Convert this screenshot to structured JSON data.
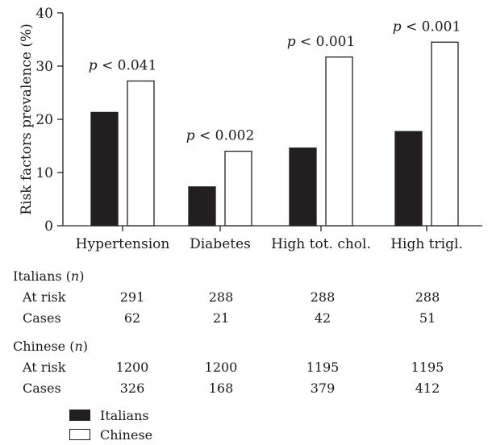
{
  "chart_data": {
    "type": "bar",
    "ylabel": "Risk factors prevalence (%)",
    "ylim": [
      0,
      40
    ],
    "yticks": [
      0,
      10,
      20,
      30,
      40
    ],
    "categories": [
      "Hypertension",
      "Diabetes",
      "High tot. chol.",
      "High trigl."
    ],
    "series": [
      {
        "name": "Italians",
        "color": "#231f20",
        "values": [
          21.3,
          7.3,
          14.6,
          17.7
        ]
      },
      {
        "name": "Chinese",
        "color": "#ffffff",
        "values": [
          27.2,
          14.0,
          31.7,
          34.5
        ]
      }
    ],
    "annotations": [
      {
        "p": "p",
        "text": " < 0.041"
      },
      {
        "p": "p",
        "text": " < 0.002"
      },
      {
        "p": "p",
        "text": " < 0.001"
      },
      {
        "p": "p",
        "text": " < 0.001"
      }
    ],
    "legend": {
      "position": "bottom-left",
      "entries": [
        "Italians",
        "Chinese"
      ]
    }
  },
  "table": {
    "groups": [
      {
        "title": "Italians (",
        "title_var": "n",
        "title_end": ")",
        "rows": [
          {
            "label": "At risk",
            "values": [
              "291",
              "288",
              "288",
              "288"
            ]
          },
          {
            "label": "Cases",
            "values": [
              "62",
              "21",
              "42",
              "51"
            ]
          }
        ]
      },
      {
        "title": "Chinese (",
        "title_var": "n",
        "title_end": ")",
        "rows": [
          {
            "label": "At risk",
            "values": [
              "1200",
              "1200",
              "1195",
              "1195"
            ]
          },
          {
            "label": "Cases",
            "values": [
              "326",
              "168",
              "379",
              "412"
            ]
          }
        ]
      }
    ]
  }
}
